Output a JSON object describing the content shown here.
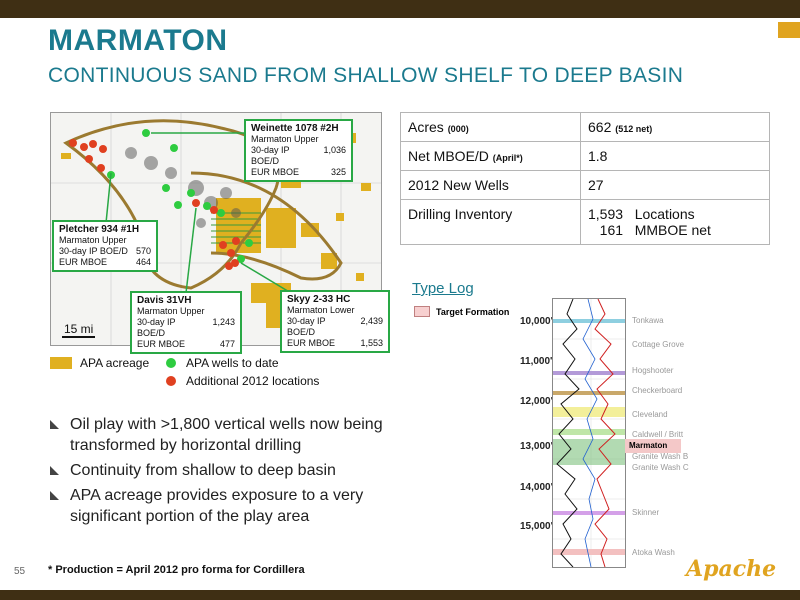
{
  "header": {
    "title": "MARMATON",
    "subtitle": "CONTINUOUS SAND FROM SHALLOW SHELF TO DEEP BASIN"
  },
  "map": {
    "scale_label": "15 mi",
    "wells": [
      {
        "name": "Weinette 1078 #2H",
        "zone": "Marmaton Upper",
        "ip_label": "30-day IP BOE/D",
        "ip_value": "1,036",
        "eur_label": "EUR MBOE",
        "eur_value": "325"
      },
      {
        "name": "Pletcher 934 #1H",
        "zone": "Marmaton Upper",
        "ip_label": "30-day IP BOE/D",
        "ip_value": "570",
        "eur_label": "EUR MBOE",
        "eur_value": "464"
      },
      {
        "name": "Davis 31VH",
        "zone": "Marmaton Upper",
        "ip_label": "30-day IP BOE/D",
        "ip_value": "1,243",
        "eur_label": "EUR MBOE",
        "eur_value": "477"
      },
      {
        "name": "Skyy 2-33 HC",
        "zone": "Marmaton Lower",
        "ip_label": "30-day IP BOE/D",
        "ip_value": "2,439",
        "eur_label": "EUR MBOE",
        "eur_value": "1,553"
      }
    ]
  },
  "legend": {
    "acreage": "APA acreage",
    "wells_to_date": "APA wells to date",
    "additional": "Additional 2012 locations",
    "colors": {
      "acreage": "#e0b020",
      "wells": "#2ecc40",
      "additional": "#e04020"
    }
  },
  "stats": [
    {
      "key": "Acres",
      "key_small": "(000)",
      "value": "662",
      "value_small": "(512 net)"
    },
    {
      "key": "Net MBOE/D",
      "key_small": "(April*)",
      "value": "1.8",
      "value_small": ""
    },
    {
      "key": "2012 New Wells",
      "key_small": "",
      "value": "27",
      "value_small": ""
    },
    {
      "key": "Drilling Inventory",
      "key_small": "",
      "value": "1,593   Locations",
      "value2": "161   MMBOE net"
    }
  ],
  "type_log": {
    "title": "Type Log",
    "target_label": "Target Formation",
    "depths": [
      "10,000'",
      "11,000'",
      "12,000'",
      "13,000'",
      "14,000'",
      "15,000'"
    ],
    "formations": [
      "Tonkawa",
      "Cottage Grove",
      "Hogshooter",
      "Checkerboard",
      "Cleveland",
      "Caldwell / Britt",
      "Granite Wash B",
      "Granite Wash C",
      "Skinner",
      "Atoka Wash"
    ],
    "target": "Marmaton"
  },
  "bullets": [
    "Oil play with >1,800 vertical wells now being transformed by horizontal drilling",
    "Continuity from shallow to deep basin",
    "APA acreage provides exposure to a very significant portion of the play area"
  ],
  "footer": {
    "page_number": "55",
    "footnote": "* Production = April 2012 pro forma for Cordillera",
    "logo": "Apache"
  }
}
